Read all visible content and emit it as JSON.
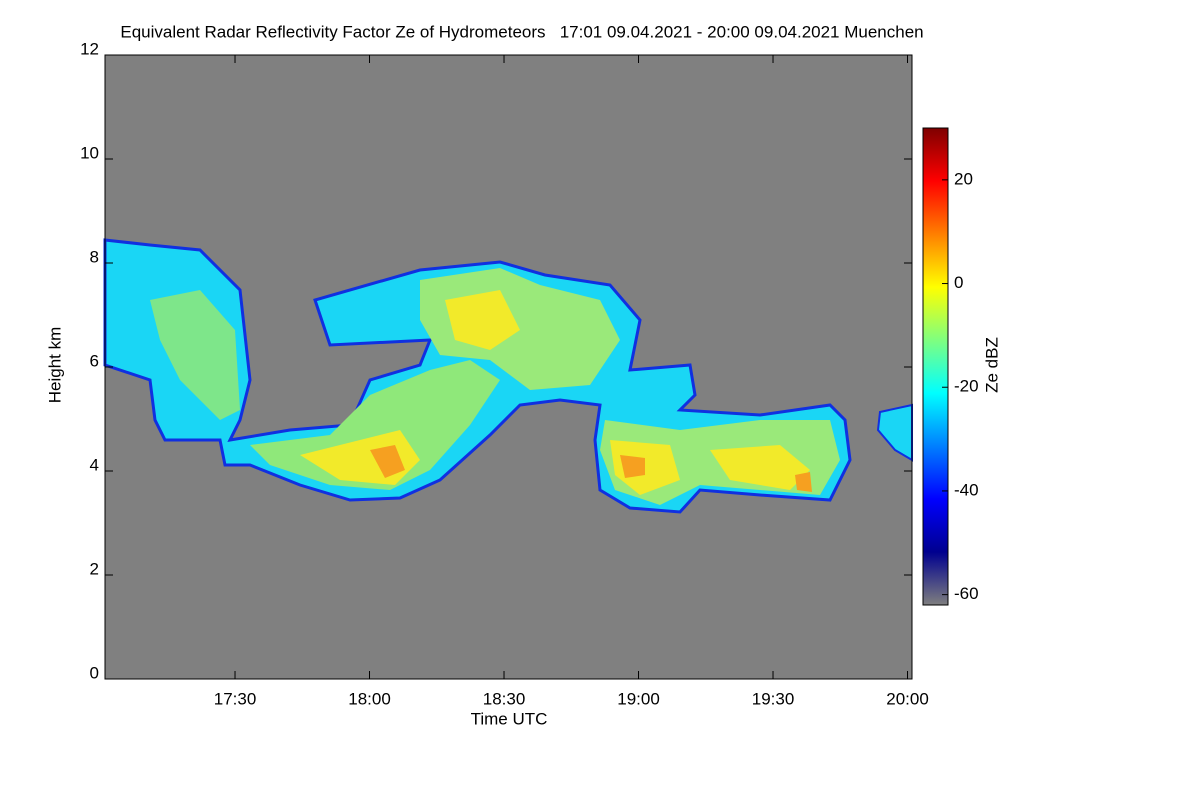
{
  "chart_data": {
    "type": "heatmap",
    "title": "Equivalent Radar Reflectivity Factor Ze of Hydrometeors   17:01 09.04.2021 - 20:00 09.04.2021 Muenchen",
    "x_label": "Time UTC",
    "y_label": "Height km",
    "colorbar_label": "Ze dBZ",
    "xlim": [
      1021,
      1201
    ],
    "xticks": [
      {
        "value": 1050,
        "label": "17:30"
      },
      {
        "value": 1080,
        "label": "18:00"
      },
      {
        "value": 1110,
        "label": "18:30"
      },
      {
        "value": 1140,
        "label": "19:00"
      },
      {
        "value": 1170,
        "label": "19:30"
      },
      {
        "value": 1200,
        "label": "20:00"
      }
    ],
    "ylim": [
      0,
      12
    ],
    "yticks": [
      0,
      2,
      4,
      6,
      8,
      10,
      12
    ],
    "clim": [
      -62,
      30
    ],
    "cticks": [
      -60,
      -40,
      -20,
      0,
      20
    ],
    "colormap": [
      "#7f7f7f",
      "#00008f",
      "#0000ff",
      "#007fff",
      "#00ffff",
      "#7fff7f",
      "#ffff00",
      "#ff7f00",
      "#ff0000",
      "#7f0000"
    ],
    "background": "#808080"
  }
}
